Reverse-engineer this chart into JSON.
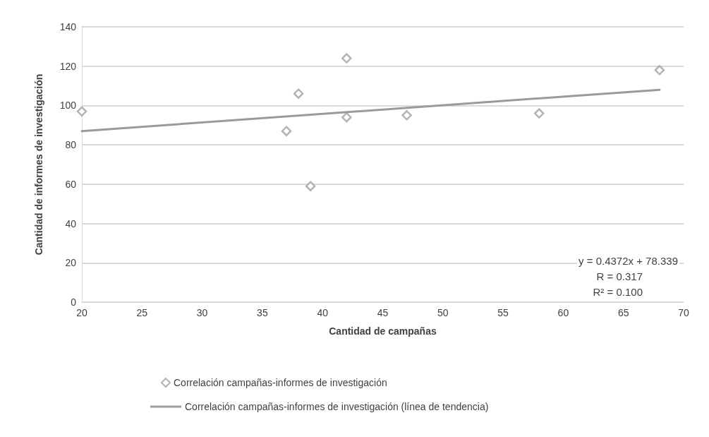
{
  "chart_data": {
    "type": "scatter",
    "xlabel": "Cantidad de campañas",
    "ylabel": "Cantidad de informes de investigación",
    "xlim": [
      20,
      70
    ],
    "xticks": [
      20,
      25,
      30,
      35,
      40,
      45,
      50,
      55,
      60,
      65,
      70
    ],
    "ylim": [
      0,
      140
    ],
    "yticks": [
      0,
      20,
      40,
      60,
      80,
      100,
      120,
      140
    ],
    "grid": "y",
    "legend": "bottom",
    "series": [
      {
        "name": "Correlación campañas-informes de investigación",
        "marker": "diamond",
        "color": "#a0a0a0",
        "x": [
          20,
          37,
          38,
          39,
          42,
          42,
          47,
          58,
          68
        ],
        "values": [
          97,
          87,
          106,
          59,
          124,
          94,
          95,
          96,
          118
        ]
      },
      {
        "name": "Correlación campañas-informes de investigación (línea de tendencia)",
        "type": "line",
        "marker": "none",
        "line_style": "solid",
        "color": "#9a9a9a",
        "x": [
          20,
          68
        ],
        "values": [
          87,
          108
        ]
      }
    ],
    "annotations": [
      "y = 0.4372x + 78.339",
      "R = 0.317",
      "R² = 0.100"
    ]
  }
}
